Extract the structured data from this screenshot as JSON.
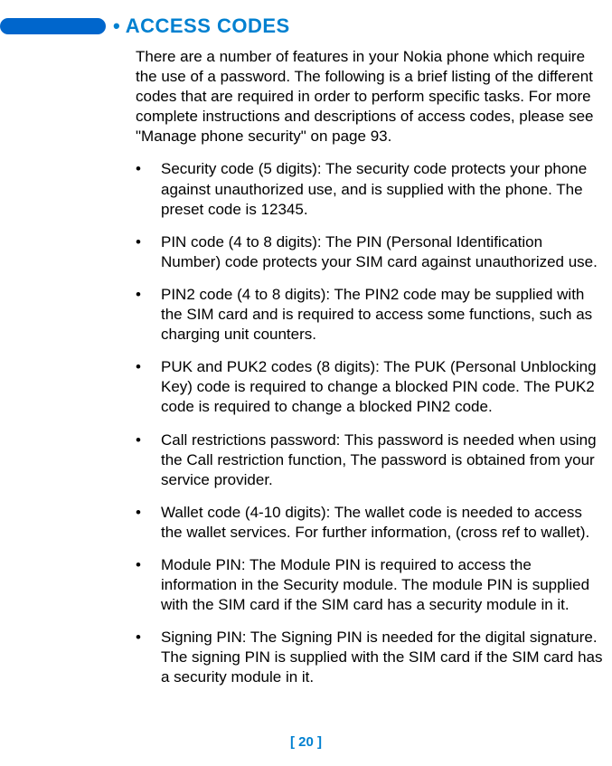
{
  "heading": {
    "bullet": "•",
    "title": "ACCESS CODES"
  },
  "intro": "There are a number of features in your Nokia phone which require the use of a password. The following is a brief listing of the different codes that are required in order to perform specific tasks. For more complete instructions and descriptions of access codes, please see \"Manage phone security\" on page 93.",
  "bullets": [
    "Security code (5 digits): The security code protects your phone against unauthorized use, and is supplied with the phone. The preset code is 12345.",
    "PIN code (4 to 8 digits): The PIN (Personal Identification Number) code protects your SIM card against unauthorized use.",
    "PIN2 code (4 to 8 digits): The PIN2 code may be supplied with the SIM card and is required to access some functions, such as charging unit counters.",
    "PUK and PUK2 codes (8 digits): The PUK (Personal Unblocking Key) code is required to change a blocked PIN code. The PUK2 code is required to change a blocked PIN2 code.",
    "Call restrictions password: This password is needed when using the Call restriction function, The password is obtained from your service provider.",
    "Wallet code (4-10 digits): The wallet code is needed to access the wallet services. For further information, (cross ref to wallet).",
    "Module PIN: The Module PIN is required to access the information in the Security module. The module PIN is supplied with the SIM card if the SIM card has a security module in it.",
    "Signing PIN: The Signing PIN is needed for the digital signature. The signing PIN is supplied with the SIM card if the SIM card has a security module in it."
  ],
  "bullet_marker": "•",
  "page_number": "[ 20 ]",
  "colors": {
    "accent": "#0080d0",
    "bar": "#0066cc",
    "text": "#000000",
    "background": "#ffffff"
  }
}
